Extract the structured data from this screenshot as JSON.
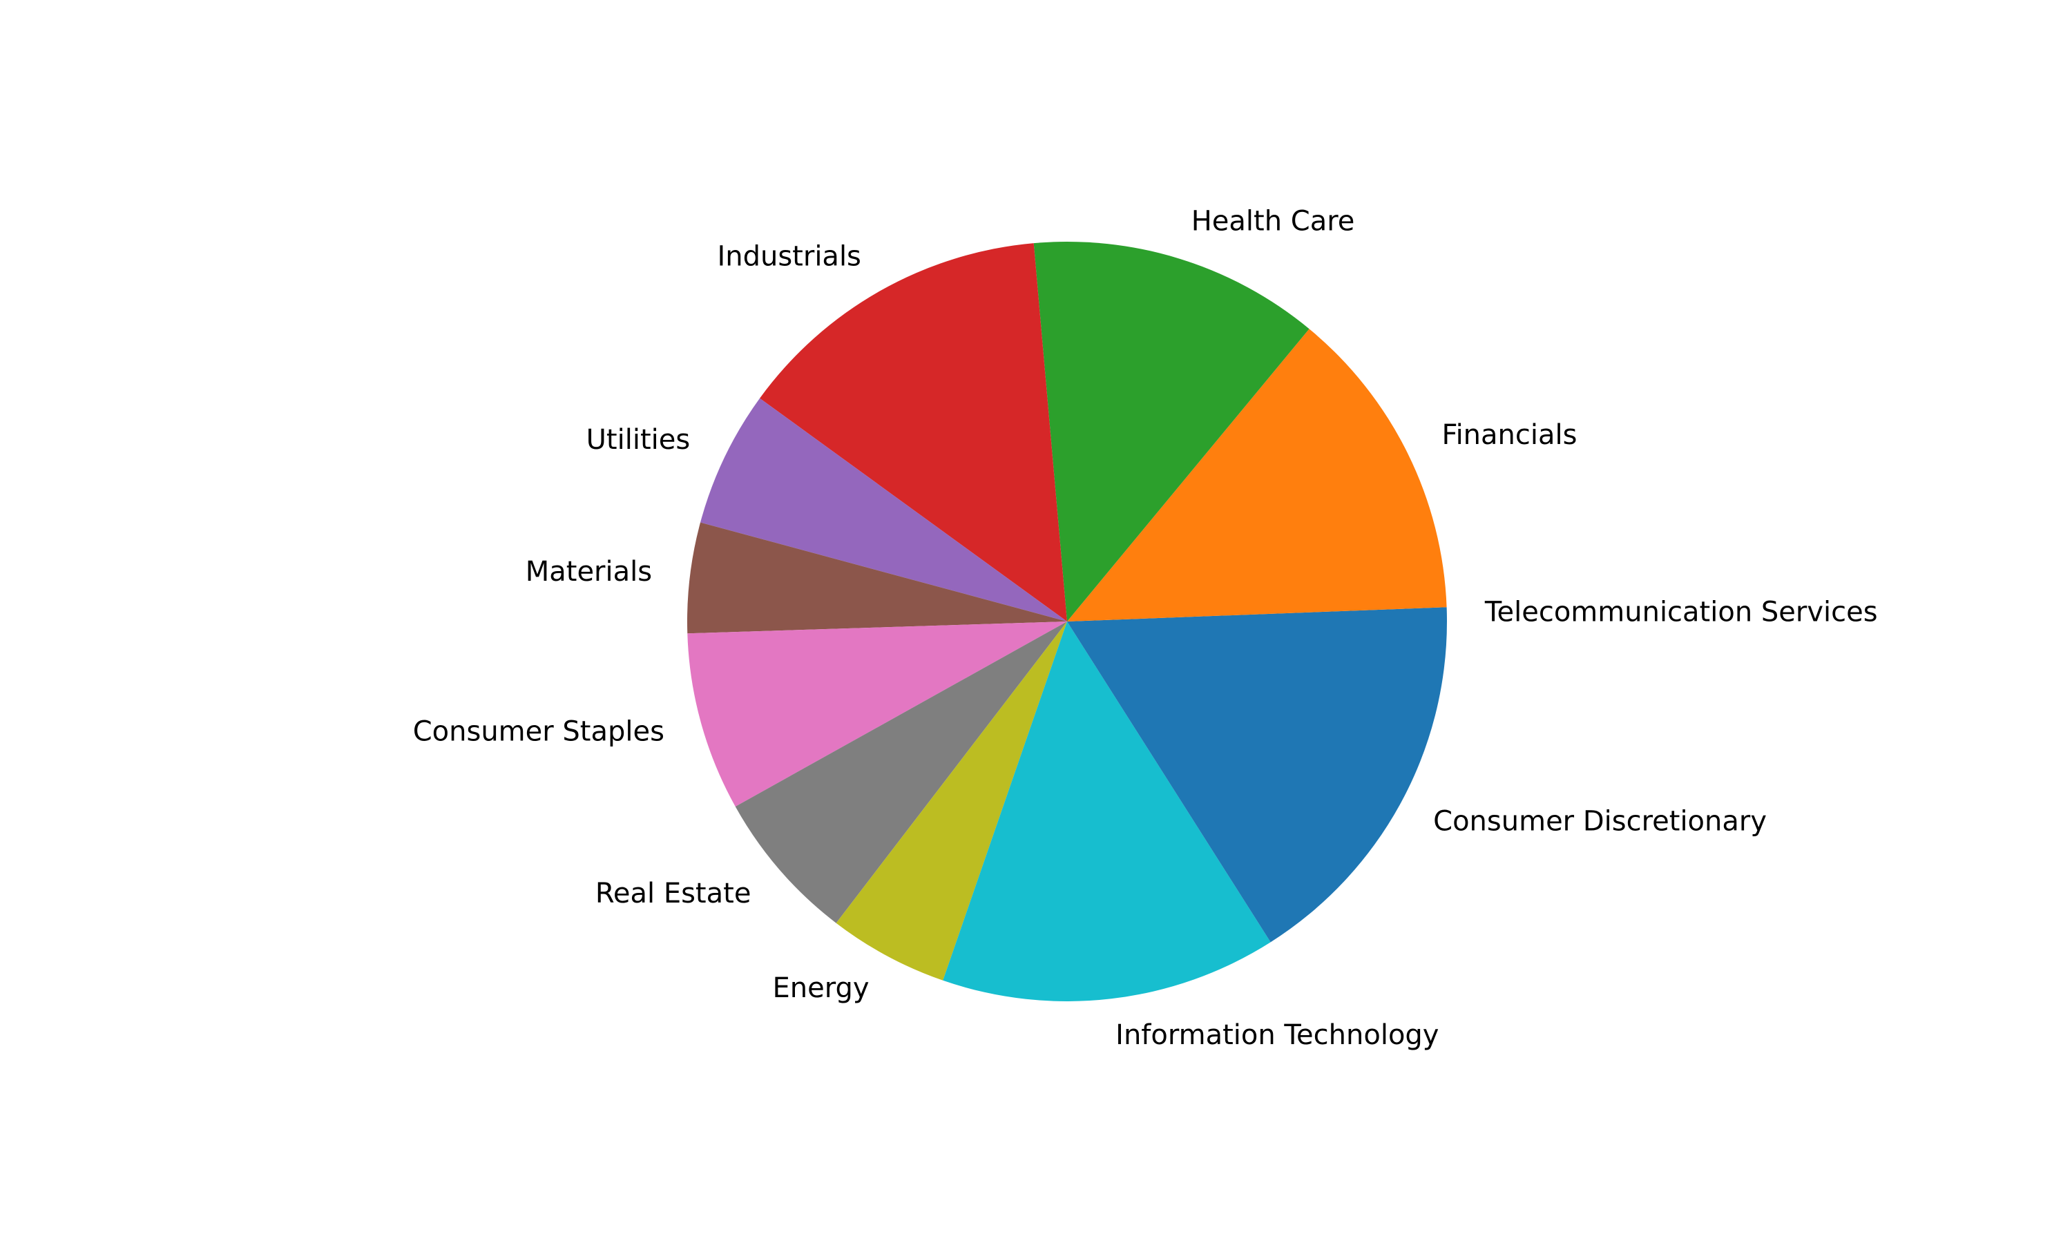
{
  "chart_data": {
    "type": "pie",
    "title": "",
    "start_angle_deg": 0,
    "direction": "counterclockwise",
    "slices": [
      {
        "label": "Telecommunication Services",
        "value": 0.6,
        "color": "#1f77b4"
      },
      {
        "label": "Financials",
        "value": 13.4,
        "color": "#ff7f0e"
      },
      {
        "label": "Health Care",
        "value": 12.4,
        "color": "#2ca02c"
      },
      {
        "label": "Industrials",
        "value": 13.6,
        "color": "#d62728"
      },
      {
        "label": "Utilities",
        "value": 5.8,
        "color": "#9467bd"
      },
      {
        "label": "Materials",
        "value": 4.7,
        "color": "#8c564b"
      },
      {
        "label": "Consumer Staples",
        "value": 7.6,
        "color": "#e377c2"
      },
      {
        "label": "Real Estate",
        "value": 6.5,
        "color": "#7f7f7f"
      },
      {
        "label": "Energy",
        "value": 5.1,
        "color": "#bcbd22"
      },
      {
        "label": "Information Technology",
        "value": 14.3,
        "color": "#17becf"
      },
      {
        "label": "Consumer Discretionary",
        "value": 16.0,
        "color": "#1f77b4"
      }
    ]
  }
}
